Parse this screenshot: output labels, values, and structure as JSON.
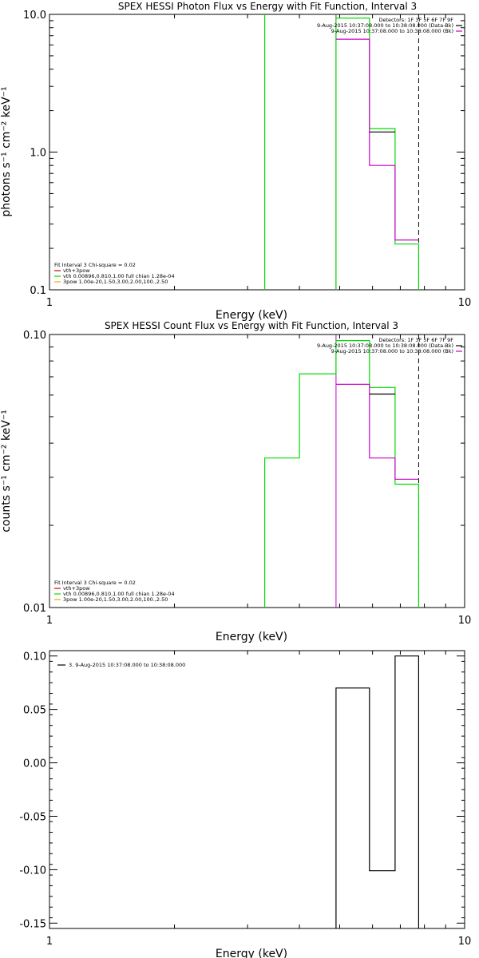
{
  "colors": {
    "black": "#000000",
    "green": "#00dd00",
    "magenta": "#cc00cc",
    "red": "#dd0000",
    "orange": "#e0b000"
  },
  "chart_data": [
    {
      "type": "line",
      "title": "SPEX HESSI Photon Flux vs Energy with Fit Function, Interval 3",
      "xlabel": "Energy (keV)",
      "ylabel": "photons s⁻¹ cm⁻² keV⁻¹",
      "xscale": "log",
      "yscale": "log",
      "xlim": [
        1,
        10
      ],
      "ylim": [
        0.1,
        10.0
      ],
      "xticks": [
        "1",
        "10"
      ],
      "yticks": [
        {
          "v": 10.0,
          "t": "10.0"
        },
        {
          "v": 1.0,
          "t": "1.0"
        },
        {
          "v": 0.1,
          "t": "0.1"
        }
      ],
      "legend_top": [
        {
          "text": "Detectors: 1F 3F 5F 6F 7F 9F",
          "color": "black"
        },
        {
          "text": "9-Aug-2015 10:37:08.000 to 10:38:08.000 (Data-Bk)",
          "color": "black"
        },
        {
          "text": "9-Aug-2015 10:37:08.000 to 10:38:08.000 (Bk)",
          "color": "magenta"
        }
      ],
      "legend_bottom": [
        {
          "text": "Fit Interval 3   Chi-square = 0.02",
          "color": "black"
        },
        {
          "text": "vth+3pow",
          "color": "red"
        },
        {
          "text": "vth 0.00896,0.810,1.00  full chian 1.28e-04",
          "color": "green"
        },
        {
          "text": "3pow 1.00e-20,1.50,3.00,2.00,100.,2.50",
          "color": "orange"
        }
      ],
      "vlines": [
        {
          "x": 4.9,
          "color": "magenta",
          "dashed": false
        },
        {
          "x": 7.75,
          "color": "black",
          "dashed": true
        }
      ],
      "series": [
        {
          "color": "green",
          "x": [
            3.3,
            3.3
          ],
          "y": [
            0.1,
            10.0
          ]
        },
        {
          "color": "green",
          "x": [
            4.9,
            4.9,
            5.9,
            5.9,
            6.8,
            6.8,
            7.75,
            7.75
          ],
          "y": [
            0.1,
            9.4,
            9.4,
            1.48,
            1.48,
            0.215,
            0.215,
            0.1
          ]
        },
        {
          "color": "magenta",
          "x": [
            4.9,
            5.9,
            5.9,
            6.8,
            6.8,
            7.75
          ],
          "y": [
            6.6,
            6.6,
            0.8,
            0.8,
            0.23,
            0.23
          ]
        },
        {
          "color": "black",
          "x": [
            5.9,
            6.8
          ],
          "y": [
            1.4,
            1.4
          ]
        }
      ]
    },
    {
      "type": "line",
      "title": "SPEX HESSI Count Flux vs Energy with Fit Function, Interval 3",
      "xlabel": "Energy (keV)",
      "ylabel": "counts s⁻¹ cm⁻² keV⁻¹",
      "xscale": "log",
      "yscale": "log",
      "xlim": [
        1,
        10
      ],
      "ylim": [
        0.01,
        0.1
      ],
      "xticks": [
        "1",
        "10"
      ],
      "yticks": [
        {
          "v": 0.1,
          "t": "0.10"
        },
        {
          "v": 0.01,
          "t": "0.01"
        }
      ],
      "legend_top": [
        {
          "text": "Detectors: 1F 3F 5F 6F 7F 9F",
          "color": "black"
        },
        {
          "text": "9-Aug-2015 10:37:08.000 to 10:38:08.000 (Data-Bk)",
          "color": "black"
        },
        {
          "text": "9-Aug-2015 10:37:08.000 to 10:38:08.000 (Bk)",
          "color": "magenta"
        }
      ],
      "legend_bottom": [
        {
          "text": "Fit Interval 3   Chi-square = 0.02",
          "color": "black"
        },
        {
          "text": "vth+3pow",
          "color": "red"
        },
        {
          "text": "vth 0.00896,0.810,1.00  full chian 1.28e-04",
          "color": "green"
        },
        {
          "text": "3pow 1.00e-20,1.50,3.00,2.00,100.,2.50",
          "color": "orange"
        }
      ],
      "vlines": [
        {
          "x": 4.9,
          "color": "magenta",
          "dashed": false
        },
        {
          "x": 7.75,
          "color": "black",
          "dashed": true
        }
      ],
      "series": [
        {
          "color": "green",
          "x": [
            3.3,
            3.3,
            4.0,
            4.0,
            4.9,
            4.9,
            5.9,
            5.9,
            6.8,
            6.8,
            7.75,
            7.75
          ],
          "y": [
            0.01,
            0.0353,
            0.0353,
            0.0717,
            0.0717,
            0.095,
            0.095,
            0.064,
            0.064,
            0.0283,
            0.0283,
            0.01
          ]
        },
        {
          "color": "magenta",
          "x": [
            4.9,
            5.9,
            5.9,
            6.8,
            6.8,
            7.75
          ],
          "y": [
            0.0657,
            0.0657,
            0.0353,
            0.0353,
            0.0295,
            0.0295
          ]
        },
        {
          "color": "black",
          "x": [
            5.9,
            6.8
          ],
          "y": [
            0.0605,
            0.0605
          ]
        }
      ]
    },
    {
      "type": "line",
      "title": "",
      "xlabel": "Energy (keV)",
      "ylabel": "",
      "xscale": "log",
      "yscale": "linear",
      "xlim": [
        1,
        10
      ],
      "ylim": [
        -0.155,
        0.105
      ],
      "xticks": [
        "1",
        "10"
      ],
      "yticks": [
        {
          "v": 0.1,
          "t": "0.10"
        },
        {
          "v": 0.05,
          "t": "0.05"
        },
        {
          "v": 0.0,
          "t": "0.00"
        },
        {
          "v": -0.05,
          "t": "-0.05"
        },
        {
          "v": -0.1,
          "t": "-0.10"
        },
        {
          "v": -0.15,
          "t": "-0.15"
        }
      ],
      "legend_top": [
        {
          "text": "3.  9-Aug-2015 10:37:08.000 to 10:38:08.000",
          "color": "black"
        }
      ],
      "legend_bottom": [],
      "vlines": [],
      "series": [
        {
          "color": "black",
          "x": [
            4.9,
            4.9,
            5.9,
            5.9,
            6.8,
            6.8,
            7.75,
            7.75
          ],
          "y": [
            -0.155,
            0.07,
            0.07,
            -0.101,
            -0.101,
            0.1,
            0.1,
            -0.155
          ]
        }
      ]
    }
  ]
}
